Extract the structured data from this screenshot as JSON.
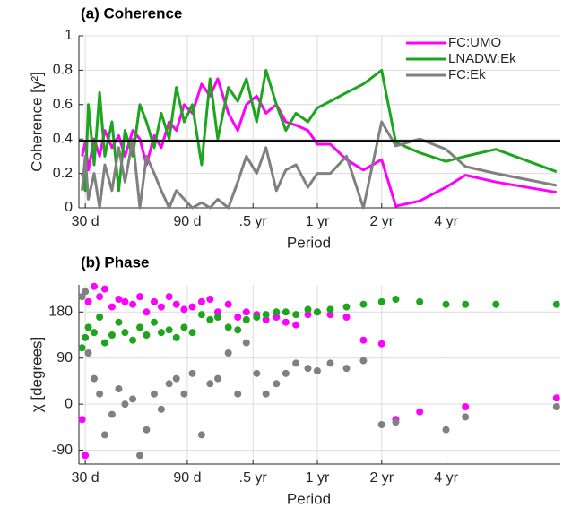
{
  "chart_data": [
    {
      "type": "line",
      "title": "(a) Coherence",
      "x_label": "Period",
      "y_label": "Coherence [γ²]",
      "xscale": "log",
      "xlim": [
        28,
        5000
      ],
      "xticks": [
        {
          "value": 30,
          "label": "30 d"
        },
        {
          "value": 90,
          "label": "90 d"
        },
        {
          "value": 182.6,
          "label": ".5 yr"
        },
        {
          "value": 365.25,
          "label": "1 yr"
        },
        {
          "value": 730.5,
          "label": "2 yr"
        },
        {
          "value": 1461,
          "label": "4 yr"
        }
      ],
      "ylim": [
        0,
        1
      ],
      "yticks": [
        0,
        0.2,
        0.4,
        0.6,
        0.8,
        1
      ],
      "grid": true,
      "legend": "upper right",
      "hline": 0.39,
      "hline_color": "#000000",
      "x": [
        29,
        30,
        31,
        33,
        35,
        37,
        40,
        43,
        46,
        50,
        54,
        58,
        63,
        68,
        74,
        80,
        87,
        95,
        105,
        115,
        125,
        140,
        155,
        170,
        190,
        210,
        235,
        260,
        290,
        330,
        365,
        420,
        500,
        600,
        730,
        850,
        1100,
        1460,
        1800,
        2500,
        4800
      ],
      "series": [
        {
          "name": "FC:UMO",
          "color": "#ff00ff",
          "values": [
            0.3,
            0.38,
            0.22,
            0.4,
            0.3,
            0.45,
            0.35,
            0.42,
            0.3,
            0.45,
            0.4,
            0.25,
            0.42,
            0.35,
            0.5,
            0.45,
            0.6,
            0.55,
            0.72,
            0.65,
            0.75,
            0.55,
            0.45,
            0.6,
            0.65,
            0.55,
            0.6,
            0.5,
            0.48,
            0.45,
            0.37,
            0.37,
            0.28,
            0.22,
            0.28,
            0.01,
            0.04,
            0.12,
            0.19,
            0.15,
            0.09
          ]
        },
        {
          "name": "LNADW:Ek",
          "color": "#1ea51e",
          "values": [
            0.2,
            0.1,
            0.6,
            0.25,
            0.67,
            0.3,
            0.5,
            0.1,
            0.45,
            0.3,
            0.6,
            0.5,
            0.35,
            0.55,
            0.4,
            0.7,
            0.5,
            0.6,
            0.25,
            0.75,
            0.4,
            0.7,
            0.62,
            0.75,
            0.5,
            0.8,
            0.6,
            0.45,
            0.55,
            0.5,
            0.58,
            0.62,
            0.67,
            0.72,
            0.8,
            0.38,
            0.32,
            0.27,
            0.3,
            0.34,
            0.21
          ]
        },
        {
          "name": "FC:Ek",
          "color": "#808080",
          "values": [
            0.1,
            0.3,
            0.05,
            0.2,
            0.0,
            0.25,
            0.1,
            0.35,
            0.15,
            0.4,
            0.0,
            0.3,
            0.2,
            0.1,
            0.0,
            0.1,
            0.05,
            0.0,
            0.03,
            0.0,
            0.05,
            0.0,
            0.15,
            0.3,
            0.2,
            0.35,
            0.1,
            0.22,
            0.25,
            0.12,
            0.2,
            0.2,
            0.3,
            0.0,
            0.5,
            0.36,
            0.4,
            0.34,
            0.24,
            0.2,
            0.13
          ]
        }
      ]
    },
    {
      "type": "scatter",
      "title": "(b) Phase",
      "x_label": "Period",
      "y_label": "χ [degrees]",
      "xscale": "log",
      "xlim": [
        28,
        5000
      ],
      "xticks": [
        {
          "value": 30,
          "label": "30 d"
        },
        {
          "value": 90,
          "label": "90 d"
        },
        {
          "value": 182.6,
          "label": ".5 yr"
        },
        {
          "value": 365.25,
          "label": "1 yr"
        },
        {
          "value": 730.5,
          "label": "2 yr"
        },
        {
          "value": 1461,
          "label": "4 yr"
        }
      ],
      "ylim": [
        -117,
        233
      ],
      "yticks": [
        -90,
        0,
        90,
        180
      ],
      "grid": true,
      "x": [
        29,
        30,
        31,
        33,
        35,
        37,
        40,
        43,
        46,
        50,
        54,
        58,
        63,
        68,
        74,
        80,
        87,
        95,
        105,
        115,
        125,
        140,
        155,
        170,
        190,
        210,
        235,
        260,
        290,
        330,
        365,
        420,
        500,
        600,
        730,
        850,
        1100,
        1460,
        1800,
        2500,
        4800
      ],
      "series": [
        {
          "name": "FC:UMO",
          "color": "#ff00ff",
          "values": [
            -30,
            -100,
            200,
            230,
            210,
            225,
            190,
            205,
            200,
            195,
            210,
            180,
            200,
            190,
            210,
            195,
            185,
            190,
            200,
            205,
            180,
            195,
            170,
            180,
            175,
            165,
            170,
            160,
            155,
            175,
            180,
            175,
            170,
            125,
            118,
            -30,
            -15,
            null,
            -5,
            null,
            12
          ]
        },
        {
          "name": "LNADW:Ek",
          "color": "#1ea51e",
          "values": [
            110,
            130,
            150,
            140,
            170,
            120,
            135,
            160,
            140,
            125,
            150,
            135,
            160,
            140,
            145,
            130,
            150,
            140,
            175,
            165,
            170,
            150,
            145,
            165,
            170,
            175,
            180,
            180,
            175,
            185,
            180,
            185,
            190,
            195,
            200,
            205,
            200,
            195,
            195,
            195,
            195
          ]
        },
        {
          "name": "FC:Ek",
          "color": "#808080",
          "values": [
            210,
            220,
            100,
            50,
            20,
            -60,
            -20,
            30,
            0,
            10,
            -100,
            -50,
            20,
            -10,
            40,
            50,
            20,
            60,
            -60,
            40,
            50,
            100,
            20,
            120,
            60,
            20,
            40,
            60,
            80,
            70,
            65,
            80,
            70,
            85,
            -40,
            -35,
            null,
            -50,
            -25,
            null,
            -5
          ]
        }
      ]
    }
  ]
}
